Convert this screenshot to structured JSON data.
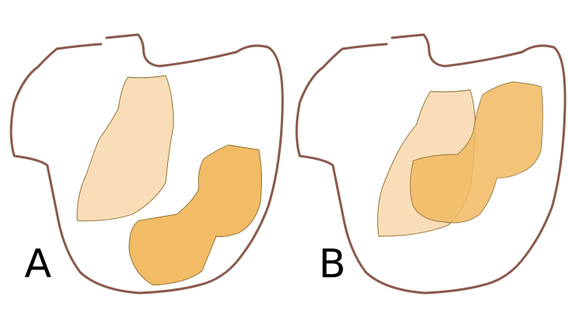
{
  "panels": [
    {
      "label": "A"
    },
    {
      "label": "B"
    }
  ],
  "colors": {
    "outline": "#8a5a4e",
    "light_region": "#f8ddb8",
    "dark_region": "#f2bb66",
    "region_edge": "#8a6a2a",
    "overlap_region": "#f2bb66"
  }
}
